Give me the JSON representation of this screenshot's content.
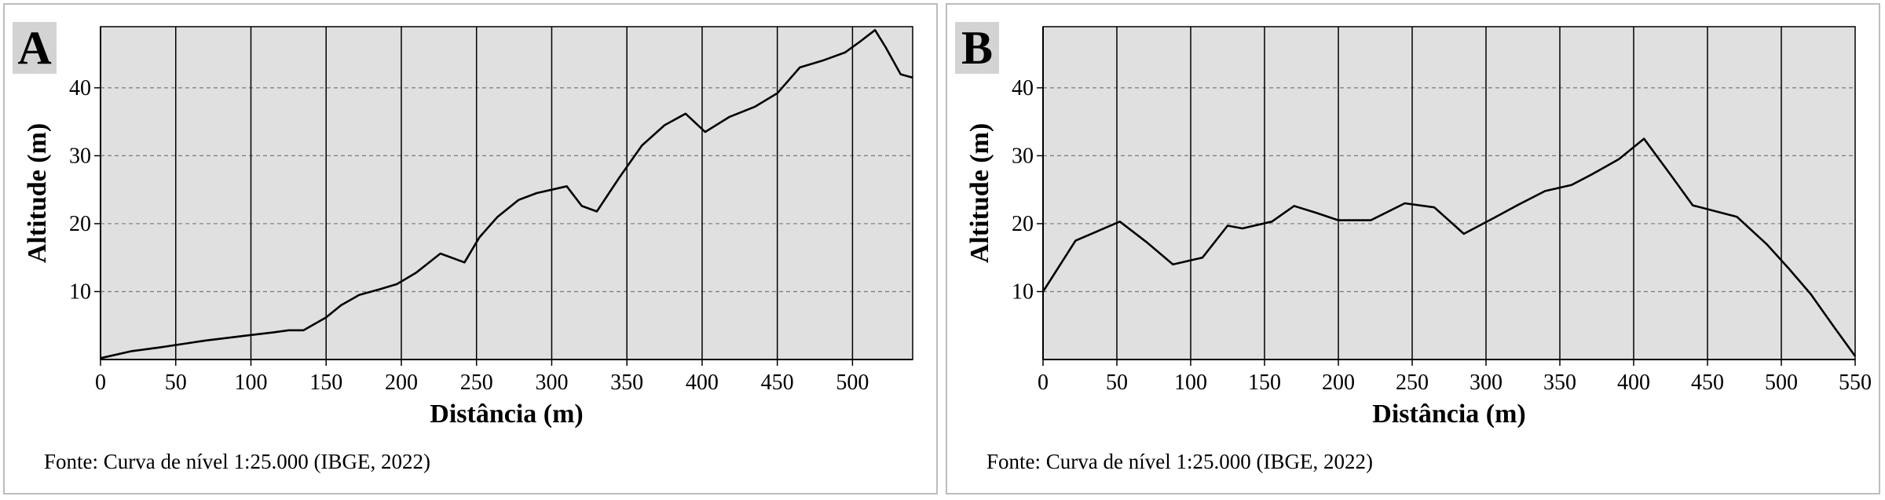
{
  "chart_data": [
    {
      "type": "line",
      "panel_label": "A",
      "title": "",
      "xlabel": "Distância (m)",
      "ylabel": "Altitude (m)",
      "xlim": [
        0,
        540
      ],
      "ylim": [
        0,
        49
      ],
      "x_ticks": [
        0,
        50,
        100,
        150,
        200,
        250,
        300,
        350,
        400,
        450,
        500
      ],
      "y_ticks": [
        10,
        20,
        30,
        40
      ],
      "vertical_grid": "solid",
      "horizontal_grid": "dashed",
      "background": "#e0e0e0",
      "line_color": "#000000",
      "source": "Fonte: Curva de nível 1:25.000 (IBGE, 2022)",
      "series": [
        {
          "x": [
            0,
            20,
            40,
            55,
            70,
            85,
            100,
            115,
            125,
            135,
            150,
            160,
            172,
            185,
            197,
            210,
            218,
            226,
            242,
            252,
            264,
            278,
            290,
            300,
            310,
            320,
            330,
            345,
            360,
            375,
            389,
            402,
            418,
            435,
            450,
            465,
            480,
            495,
            505,
            515,
            522,
            532,
            540
          ],
          "y": [
            0.2,
            1.2,
            1.8,
            2.3,
            2.8,
            3.2,
            3.6,
            4.0,
            4.3,
            4.3,
            6.2,
            8.0,
            9.5,
            10.3,
            11.1,
            12.8,
            14.2,
            15.6,
            14.3,
            18.0,
            21.0,
            23.5,
            24.5,
            25.0,
            25.5,
            22.6,
            21.8,
            26.8,
            31.5,
            34.5,
            36.2,
            33.5,
            35.7,
            37.2,
            39.2,
            43.0,
            44.0,
            45.2,
            46.8,
            48.5,
            46.0,
            42.0,
            41.5
          ]
        }
      ]
    },
    {
      "type": "line",
      "panel_label": "B",
      "title": "",
      "xlabel": "Distância (m)",
      "ylabel": "Altitude (m)",
      "xlim": [
        0,
        550
      ],
      "ylim": [
        0,
        49
      ],
      "x_ticks": [
        0,
        50,
        100,
        150,
        200,
        250,
        300,
        350,
        400,
        450,
        500,
        550
      ],
      "y_ticks": [
        10,
        20,
        30,
        40
      ],
      "vertical_grid": "solid",
      "horizontal_grid": "dashed",
      "background": "#e0e0e0",
      "line_color": "#000000",
      "source": "Fonte: Curva de nível 1:25.000 (IBGE, 2022)",
      "series": [
        {
          "x": [
            0,
            22,
            52,
            70,
            88,
            108,
            125,
            135,
            155,
            170,
            185,
            200,
            222,
            245,
            265,
            285,
            305,
            322,
            340,
            358,
            372,
            390,
            407,
            425,
            440,
            470,
            490,
            505,
            520,
            535,
            550
          ],
          "y": [
            10.0,
            17.5,
            20.3,
            17.3,
            14.0,
            15.0,
            19.7,
            19.3,
            20.3,
            22.6,
            21.6,
            20.5,
            20.5,
            23.0,
            22.4,
            18.5,
            20.8,
            22.8,
            24.8,
            25.7,
            27.3,
            29.5,
            32.5,
            27.2,
            22.7,
            21.0,
            17.0,
            13.4,
            9.6,
            5.0,
            0.5
          ]
        }
      ]
    }
  ]
}
